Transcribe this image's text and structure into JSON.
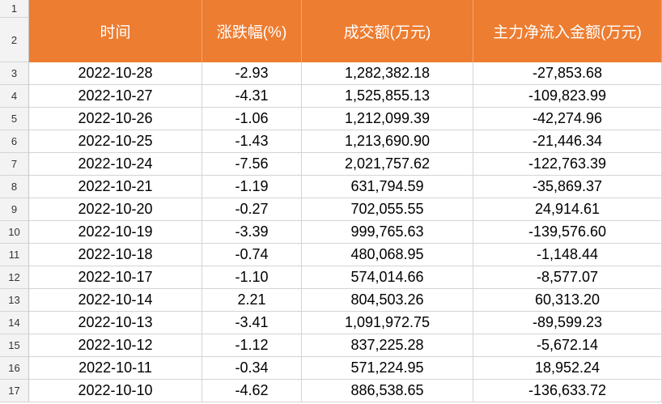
{
  "sheet": {
    "row_numbers": [
      "1",
      "2",
      "3",
      "4",
      "5",
      "6",
      "7",
      "8",
      "9",
      "10",
      "11",
      "12",
      "13",
      "14",
      "15",
      "16",
      "17"
    ],
    "header": [
      "时间",
      "涨跌幅(%)",
      "成交额(万元)",
      "主力净流入金额(万元)"
    ],
    "rows": [
      [
        "2022-10-28",
        "-2.93",
        "1,282,382.18",
        "-27,853.68"
      ],
      [
        "2022-10-27",
        "-4.31",
        "1,525,855.13",
        "-109,823.99"
      ],
      [
        "2022-10-26",
        "-1.06",
        "1,212,099.39",
        "-42,274.96"
      ],
      [
        "2022-10-25",
        "-1.43",
        "1,213,690.90",
        "-21,446.34"
      ],
      [
        "2022-10-24",
        "-7.56",
        "2,021,757.62",
        "-122,763.39"
      ],
      [
        "2022-10-21",
        "-1.19",
        "631,794.59",
        "-35,869.37"
      ],
      [
        "2022-10-20",
        "-0.27",
        "702,055.55",
        "24,914.61"
      ],
      [
        "2022-10-19",
        "-3.39",
        "999,765.63",
        "-139,576.60"
      ],
      [
        "2022-10-18",
        "-0.74",
        "480,068.95",
        "-1,148.44"
      ],
      [
        "2022-10-17",
        "-1.10",
        "574,014.66",
        "-8,577.07"
      ],
      [
        "2022-10-14",
        "2.21",
        "804,503.26",
        "60,313.20"
      ],
      [
        "2022-10-13",
        "-3.41",
        "1,091,972.75",
        "-89,599.23"
      ],
      [
        "2022-10-12",
        "-1.12",
        "837,225.28",
        "-5,672.14"
      ],
      [
        "2022-10-11",
        "-0.34",
        "571,224.95",
        "18,952.24"
      ],
      [
        "2022-10-10",
        "-4.62",
        "886,538.65",
        "-136,633.72"
      ]
    ]
  }
}
